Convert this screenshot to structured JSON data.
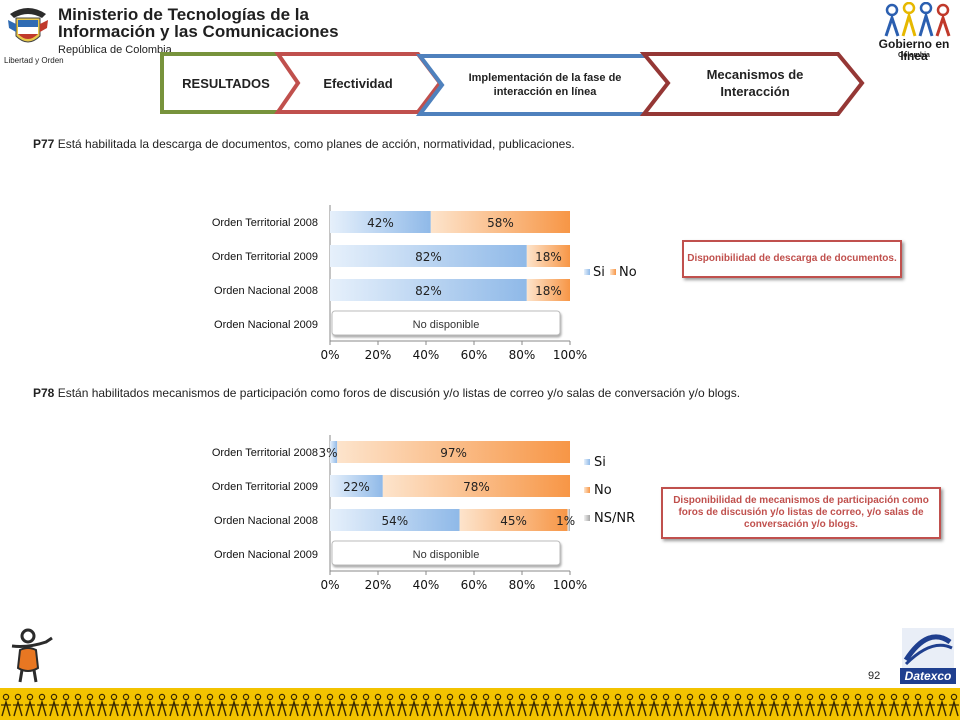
{
  "header": {
    "ministry_line1": "Ministerio de Tecnologías de la",
    "ministry_line2": "Información y las Comunicaciones",
    "ministry_sub": "República de Colombia",
    "motto": "Libertad y Orden",
    "gel_line": "Gobierno en línea",
    "gel_country": "Colombia"
  },
  "tabs": [
    {
      "label": "RESULTADOS",
      "color": "#77933c"
    },
    {
      "label": "Efectividad",
      "color": "#c0504d"
    },
    {
      "label": "Implementación de la fase de interacción en línea",
      "color": "#4f81bd"
    },
    {
      "label": "Mecanismos de Interacción",
      "color": "#953735"
    }
  ],
  "question1": {
    "code": "P77",
    "text": " Está habilitada la descarga de documentos, como planes de acción, normatividad, publicaciones."
  },
  "question2": {
    "code": "P78",
    "text": " Están habilitados mecanismos de participación como foros de discusión y/o listas de correo y/o salas de conversación y/o blogs."
  },
  "callout1": "Disponibilidad de descarga de documentos.",
  "callout2": "Disponibilidad de mecanismos de participación como foros de discusión y/o listas de correo, y/o salas de conversación y/o blogs.",
  "page_number": "92",
  "datexco": "Datexco",
  "colors": {
    "si": "#9dc3e6",
    "no": "#f79646",
    "nsnr": "#bfbfbf",
    "accent": "#c0504d"
  },
  "chart_data": [
    {
      "type": "bar",
      "orientation": "horizontal",
      "stacked": true,
      "categories": [
        "Orden Territorial 2008",
        "Orden Territorial 2009",
        "Orden Nacional 2008",
        "Orden Nacional 2009"
      ],
      "series": [
        {
          "name": "Si",
          "values": [
            42,
            82,
            82,
            null
          ],
          "labels": [
            "42%",
            "82%",
            "82%",
            ""
          ]
        },
        {
          "name": "No",
          "values": [
            58,
            18,
            18,
            null
          ],
          "labels": [
            "58%",
            "18%",
            "18%",
            ""
          ]
        }
      ],
      "xticks": [
        "0%",
        "20%",
        "40%",
        "60%",
        "80%",
        "100%"
      ],
      "xlim": [
        0,
        100
      ],
      "unavailable_label": "No disponible",
      "legend_position": "right"
    },
    {
      "type": "bar",
      "orientation": "horizontal",
      "stacked": true,
      "categories": [
        "Orden Territorial 2008",
        "Orden Territorial 2009",
        "Orden Nacional 2008",
        "Orden Nacional 2009"
      ],
      "series": [
        {
          "name": "Si",
          "values": [
            3,
            22,
            54,
            null
          ],
          "labels": [
            "3%",
            "22%",
            "54%",
            ""
          ]
        },
        {
          "name": "No",
          "values": [
            97,
            78,
            45,
            null
          ],
          "labels": [
            "97%",
            "78%",
            "45%",
            ""
          ]
        },
        {
          "name": "NS/NR",
          "values": [
            0,
            0,
            1,
            null
          ],
          "labels": [
            "",
            "",
            "1%",
            ""
          ]
        }
      ],
      "xticks": [
        "0%",
        "20%",
        "40%",
        "60%",
        "80%",
        "100%"
      ],
      "xlim": [
        0,
        100
      ],
      "unavailable_label": "No disponible",
      "legend_position": "right"
    }
  ]
}
